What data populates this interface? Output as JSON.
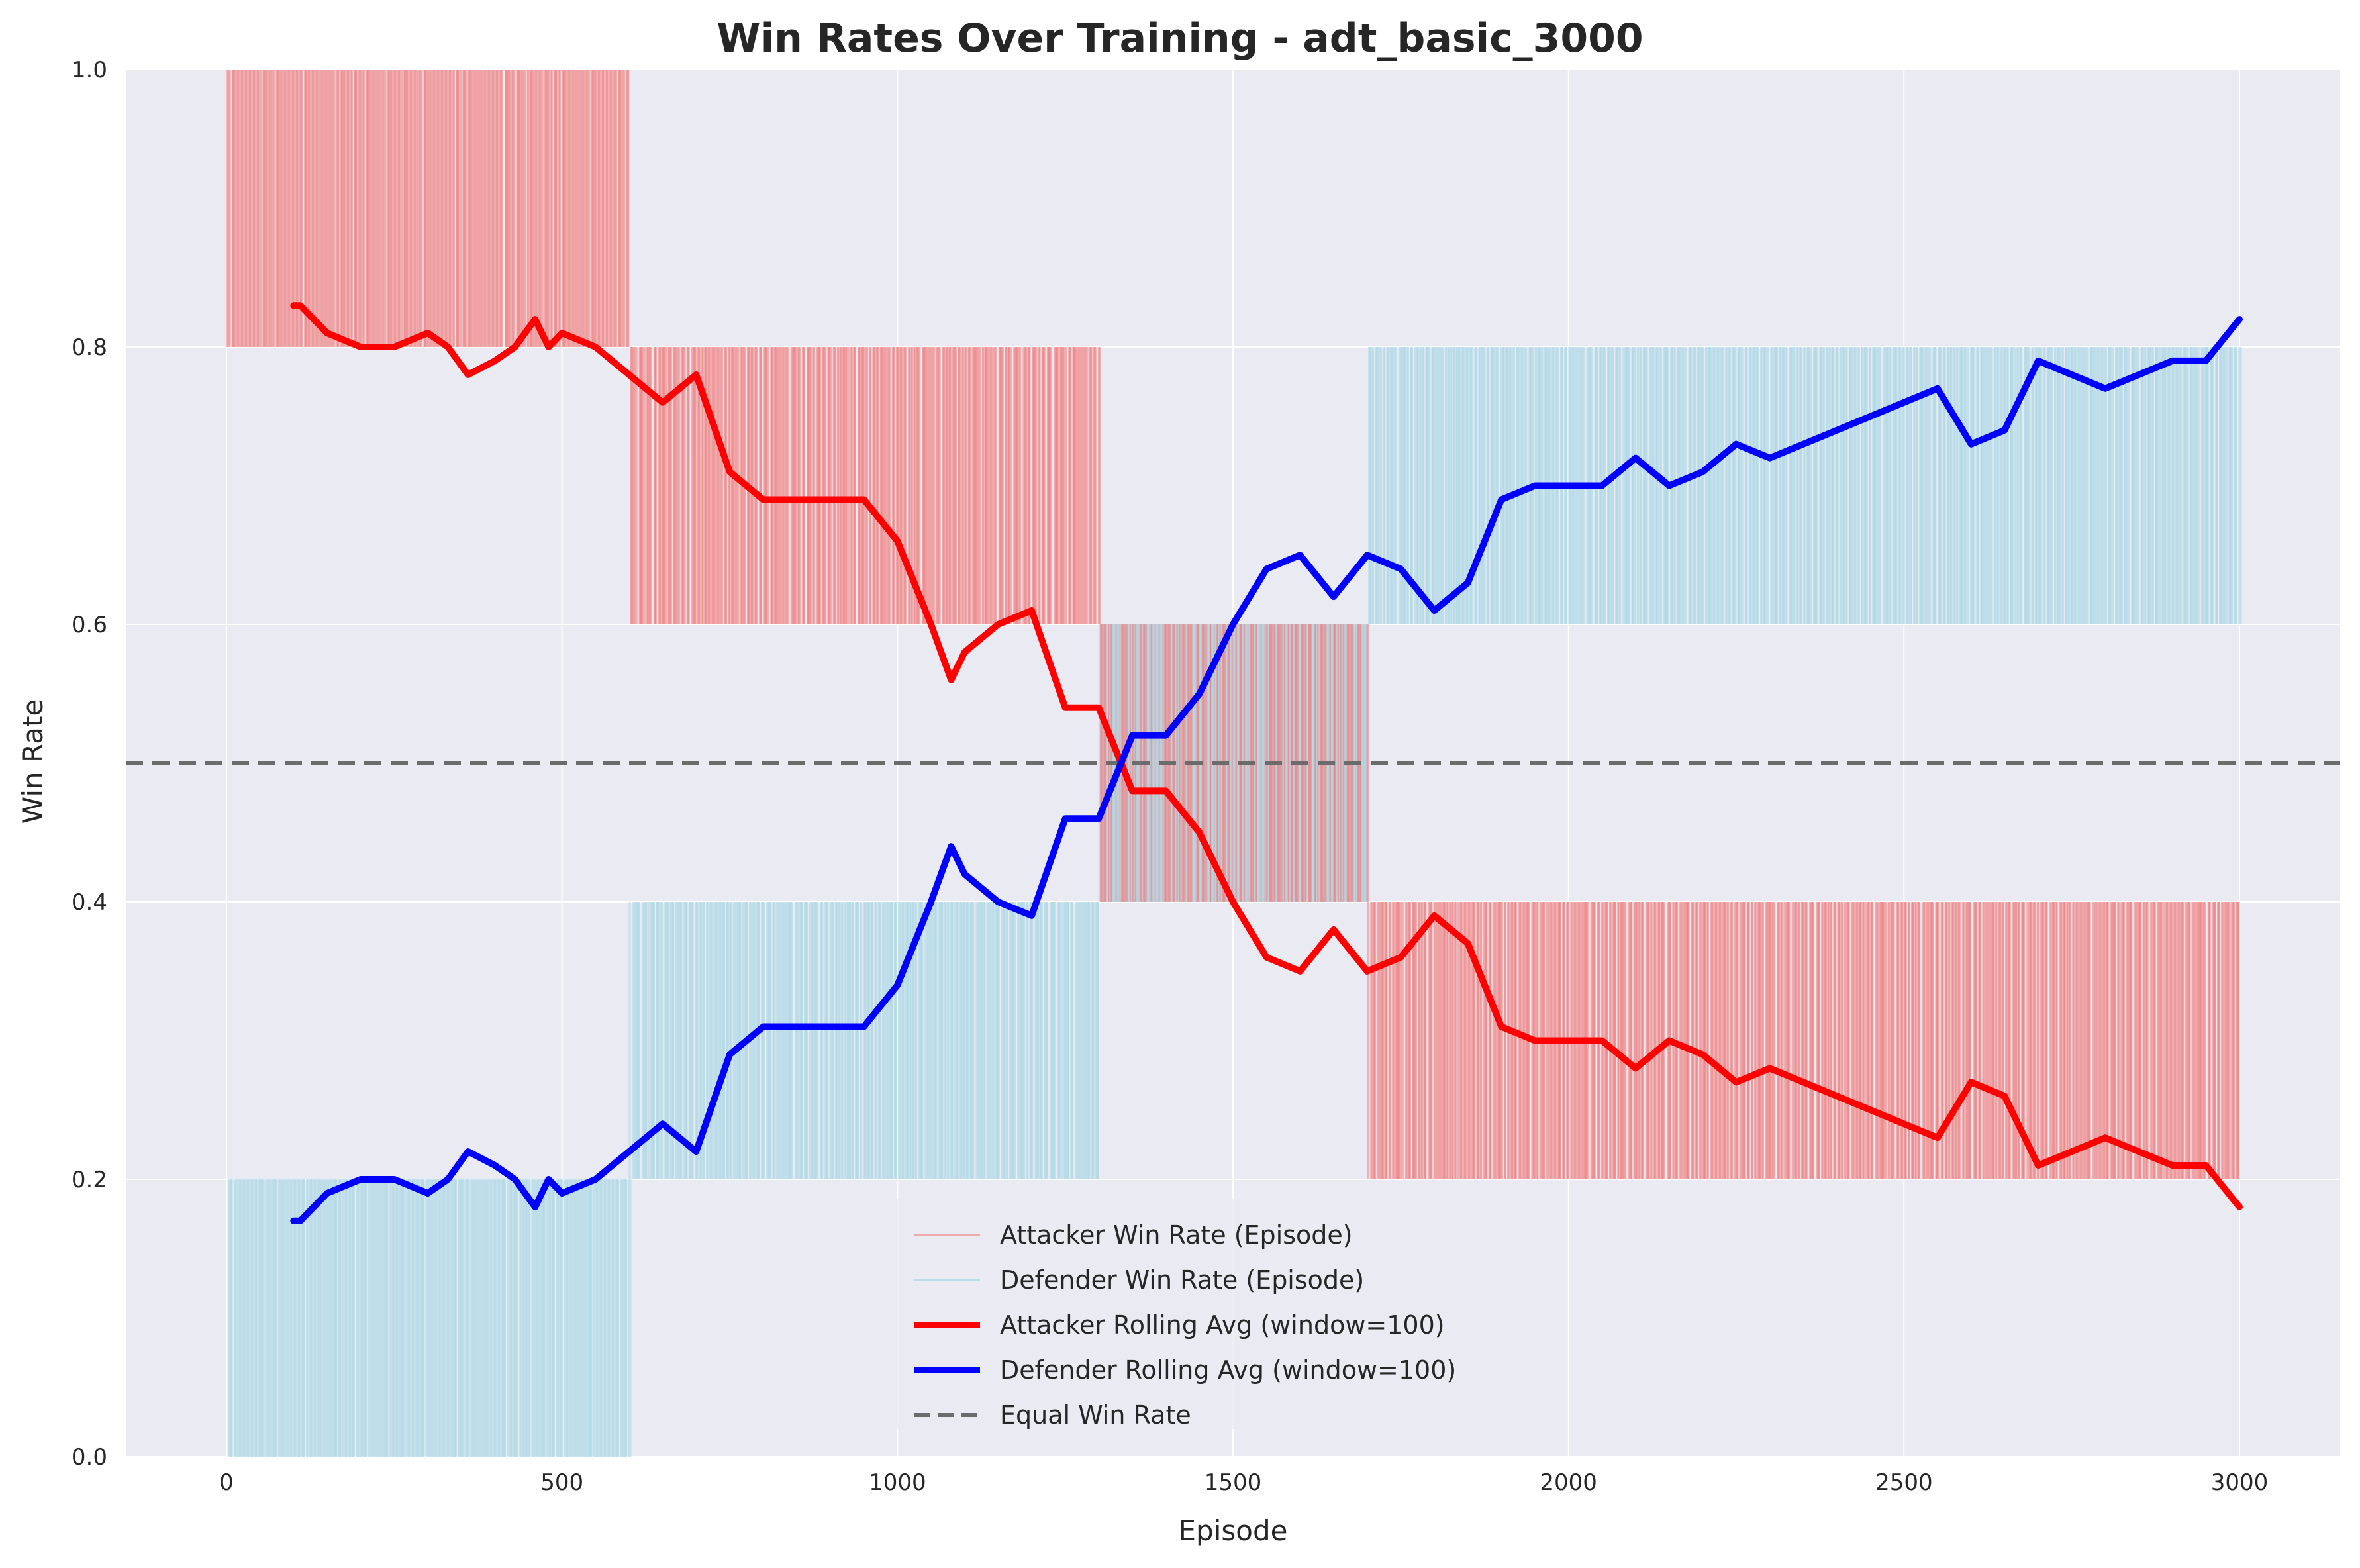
{
  "chart_data": {
    "type": "line",
    "title": "Win Rates Over Training - adt_basic_3000",
    "xlabel": "Episode",
    "ylabel": "Win Rate",
    "xlim": [
      -150,
      3150
    ],
    "ylim": [
      0,
      1.0
    ],
    "xticks": [
      0,
      500,
      1000,
      1500,
      2000,
      2500,
      3000
    ],
    "yticks": [
      0.0,
      0.2,
      0.4,
      0.6,
      0.8,
      1.0
    ],
    "xtick_labels": [
      "0",
      "500",
      "1000",
      "1500",
      "2000",
      "2500",
      "3000"
    ],
    "ytick_labels": [
      "0.0",
      "0.2",
      "0.4",
      "0.6",
      "0.8",
      "1.0"
    ],
    "grid": true,
    "background": "#eaeaf2",
    "legend_position": "lower-center",
    "episode_range": [
      1,
      3000
    ],
    "episode_level_bands": [
      {
        "segment": [
          0,
          600
        ],
        "attacker_band": [
          0.8,
          1.0
        ],
        "defender_band": [
          0.0,
          0.2
        ]
      },
      {
        "segment": [
          600,
          1300
        ],
        "attacker_band": [
          0.6,
          0.8
        ],
        "defender_band": [
          0.2,
          0.4
        ]
      },
      {
        "segment": [
          1300,
          1700
        ],
        "attacker_band": [
          0.4,
          0.6
        ],
        "defender_band": [
          0.4,
          0.6
        ]
      },
      {
        "segment": [
          1700,
          3000
        ],
        "attacker_band": [
          0.2,
          0.4
        ],
        "defender_band": [
          0.6,
          0.8
        ]
      }
    ],
    "series": [
      {
        "name": "Attacker Win Rate (Episode)",
        "role": "episode",
        "color": "#f08080"
      },
      {
        "name": "Defender Win Rate (Episode)",
        "role": "episode",
        "color": "#add8e6"
      },
      {
        "name": "Attacker Rolling Avg (window=100)",
        "role": "rolling",
        "color": "#ff0000",
        "x": [
          100,
          110,
          150,
          200,
          250,
          300,
          330,
          360,
          400,
          430,
          460,
          480,
          500,
          550,
          600,
          650,
          700,
          750,
          800,
          850,
          900,
          950,
          1000,
          1050,
          1080,
          1100,
          1150,
          1200,
          1250,
          1300,
          1350,
          1400,
          1450,
          1500,
          1550,
          1600,
          1650,
          1700,
          1750,
          1800,
          1850,
          1900,
          1950,
          2000,
          2050,
          2100,
          2150,
          2200,
          2250,
          2300,
          2350,
          2400,
          2450,
          2500,
          2550,
          2600,
          2650,
          2700,
          2750,
          2800,
          2850,
          2900,
          2950,
          3000
        ],
        "values": [
          0.83,
          0.83,
          0.81,
          0.8,
          0.8,
          0.81,
          0.8,
          0.78,
          0.79,
          0.8,
          0.82,
          0.8,
          0.81,
          0.8,
          0.78,
          0.76,
          0.78,
          0.71,
          0.69,
          0.69,
          0.69,
          0.69,
          0.66,
          0.6,
          0.56,
          0.58,
          0.6,
          0.61,
          0.54,
          0.54,
          0.48,
          0.48,
          0.45,
          0.4,
          0.36,
          0.35,
          0.38,
          0.35,
          0.36,
          0.39,
          0.37,
          0.31,
          0.3,
          0.3,
          0.3,
          0.28,
          0.3,
          0.29,
          0.27,
          0.28,
          0.27,
          0.26,
          0.25,
          0.24,
          0.23,
          0.27,
          0.26,
          0.21,
          0.22,
          0.23,
          0.22,
          0.21,
          0.21,
          0.18
        ]
      },
      {
        "name": "Defender Rolling Avg (window=100)",
        "role": "rolling",
        "color": "#0000ff",
        "x": [
          100,
          110,
          150,
          200,
          250,
          300,
          330,
          360,
          400,
          430,
          460,
          480,
          500,
          550,
          600,
          650,
          700,
          750,
          800,
          850,
          900,
          950,
          1000,
          1050,
          1080,
          1100,
          1150,
          1200,
          1250,
          1300,
          1350,
          1400,
          1450,
          1500,
          1550,
          1600,
          1650,
          1700,
          1750,
          1800,
          1850,
          1900,
          1950,
          2000,
          2050,
          2100,
          2150,
          2200,
          2250,
          2300,
          2350,
          2400,
          2450,
          2500,
          2550,
          2600,
          2650,
          2700,
          2750,
          2800,
          2850,
          2900,
          2950,
          3000
        ],
        "values": [
          0.17,
          0.17,
          0.19,
          0.2,
          0.2,
          0.19,
          0.2,
          0.22,
          0.21,
          0.2,
          0.18,
          0.2,
          0.19,
          0.2,
          0.22,
          0.24,
          0.22,
          0.29,
          0.31,
          0.31,
          0.31,
          0.31,
          0.34,
          0.4,
          0.44,
          0.42,
          0.4,
          0.39,
          0.46,
          0.46,
          0.52,
          0.52,
          0.55,
          0.6,
          0.64,
          0.65,
          0.62,
          0.65,
          0.64,
          0.61,
          0.63,
          0.69,
          0.7,
          0.7,
          0.7,
          0.72,
          0.7,
          0.71,
          0.73,
          0.72,
          0.73,
          0.74,
          0.75,
          0.76,
          0.77,
          0.73,
          0.74,
          0.79,
          0.78,
          0.77,
          0.78,
          0.79,
          0.79,
          0.82
        ]
      },
      {
        "name": "Equal Win Rate",
        "role": "reference",
        "color": "#6b6b6b",
        "y": 0.5
      }
    ]
  }
}
